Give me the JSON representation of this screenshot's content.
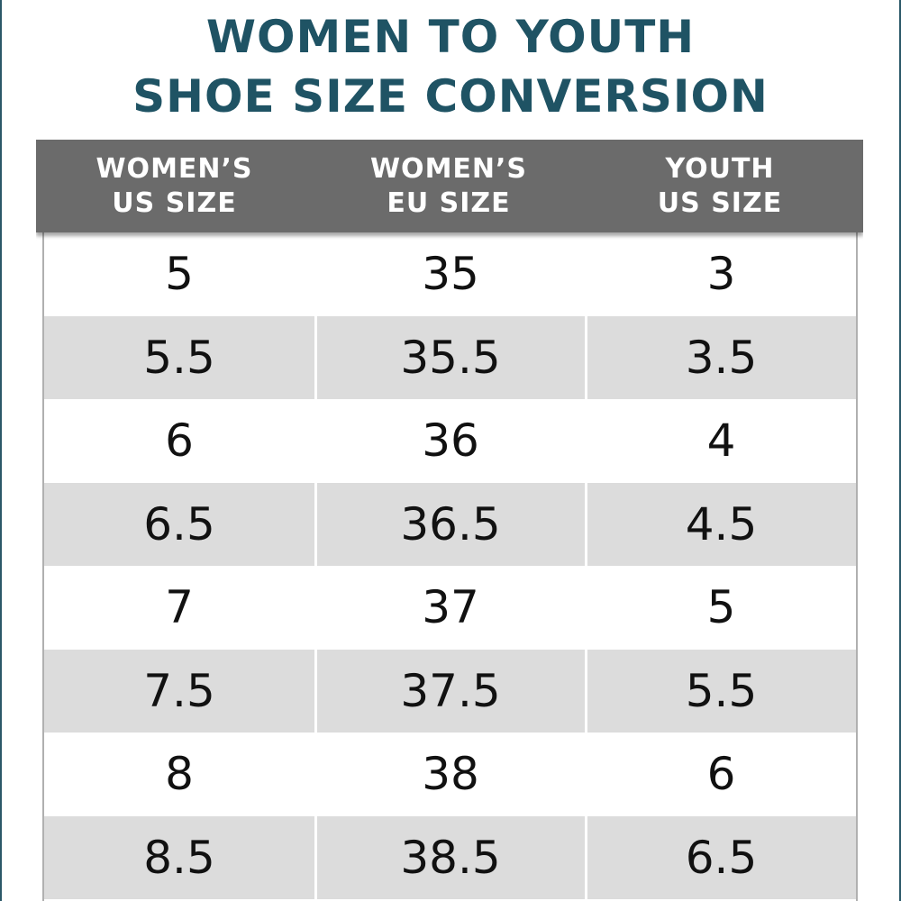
{
  "title": {
    "line1": "WOMEN TO YOUTH",
    "line2": "SHOE SIZE CONVERSION"
  },
  "colors": {
    "title": "#1f5364",
    "header_bg": "#6b6b6b",
    "header_text": "#ffffff",
    "row_alt": "#dcdcdc",
    "row": "#ffffff",
    "border": "#2b5868"
  },
  "chart_data": {
    "type": "table",
    "columns": [
      {
        "line1": "WOMEN’S",
        "line2": "US SIZE"
      },
      {
        "line1": "WOMEN’S",
        "line2": "EU SIZE"
      },
      {
        "line1": "YOUTH",
        "line2": "US SIZE"
      }
    ],
    "rows": [
      [
        "5",
        "35",
        "3"
      ],
      [
        "5.5",
        "35.5",
        "3.5"
      ],
      [
        "6",
        "36",
        "4"
      ],
      [
        "6.5",
        "36.5",
        "4.5"
      ],
      [
        "7",
        "37",
        "5"
      ],
      [
        "7.5",
        "37.5",
        "5.5"
      ],
      [
        "8",
        "38",
        "6"
      ],
      [
        "8.5",
        "38.5",
        "6.5"
      ]
    ]
  }
}
